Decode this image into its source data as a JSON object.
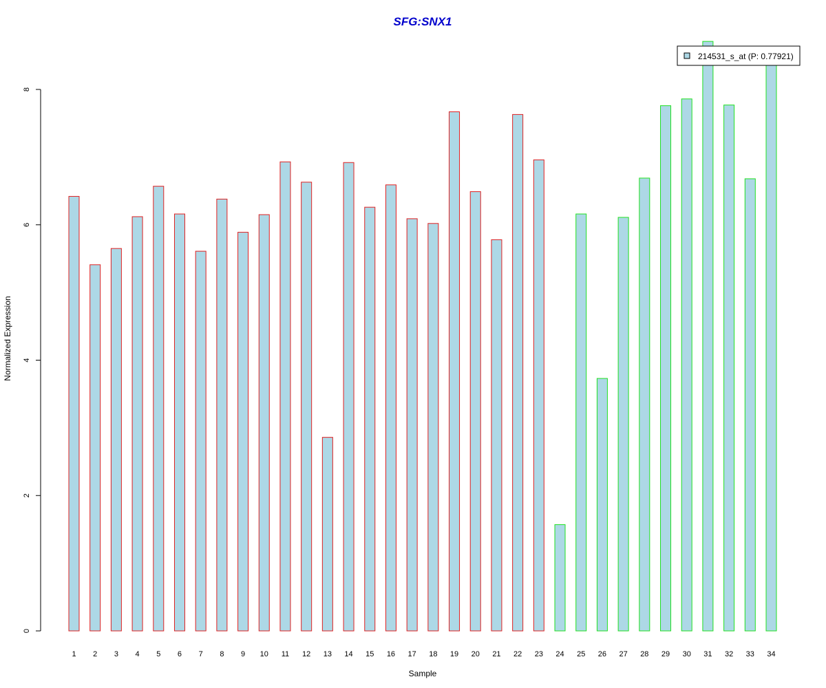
{
  "chart_data": {
    "type": "bar",
    "title": "SFG:SNX1",
    "xlabel": "Sample",
    "ylabel": "Normalized Expression",
    "categories": [
      "1",
      "2",
      "3",
      "4",
      "5",
      "6",
      "7",
      "8",
      "9",
      "10",
      "11",
      "12",
      "13",
      "14",
      "15",
      "16",
      "17",
      "18",
      "19",
      "20",
      "21",
      "22",
      "23",
      "24",
      "25",
      "26",
      "27",
      "28",
      "29",
      "30",
      "31",
      "32",
      "33",
      "34"
    ],
    "series": [
      {
        "name": "214531_s_at (P: 0.77921)",
        "values": [
          6.42,
          5.41,
          5.65,
          6.12,
          6.57,
          6.16,
          5.61,
          6.38,
          5.89,
          6.15,
          6.93,
          6.63,
          2.86,
          6.92,
          6.26,
          6.59,
          6.09,
          6.02,
          7.67,
          6.49,
          5.78,
          7.63,
          6.96,
          1.57,
          6.16,
          3.73,
          6.11,
          6.69,
          7.76,
          7.86,
          8.71,
          7.77,
          6.68,
          8.48
        ]
      }
    ],
    "group_border_colors": [
      "#e02020",
      "#e02020",
      "#e02020",
      "#e02020",
      "#e02020",
      "#e02020",
      "#e02020",
      "#e02020",
      "#e02020",
      "#e02020",
      "#e02020",
      "#e02020",
      "#e02020",
      "#e02020",
      "#e02020",
      "#e02020",
      "#e02020",
      "#e02020",
      "#e02020",
      "#e02020",
      "#e02020",
      "#e02020",
      "#e02020",
      "#20e020",
      "#20e020",
      "#20e020",
      "#20e020",
      "#20e020",
      "#20e020",
      "#20e020",
      "#20e020",
      "#20e020",
      "#20e020",
      "#20e020"
    ],
    "bar_fill": "#add8e6",
    "title_color": "#0000cc",
    "yticks": [
      0,
      2,
      4,
      6,
      8
    ],
    "ylim": [
      0,
      8.9
    ],
    "grid": false,
    "legend_position": "top-right"
  }
}
